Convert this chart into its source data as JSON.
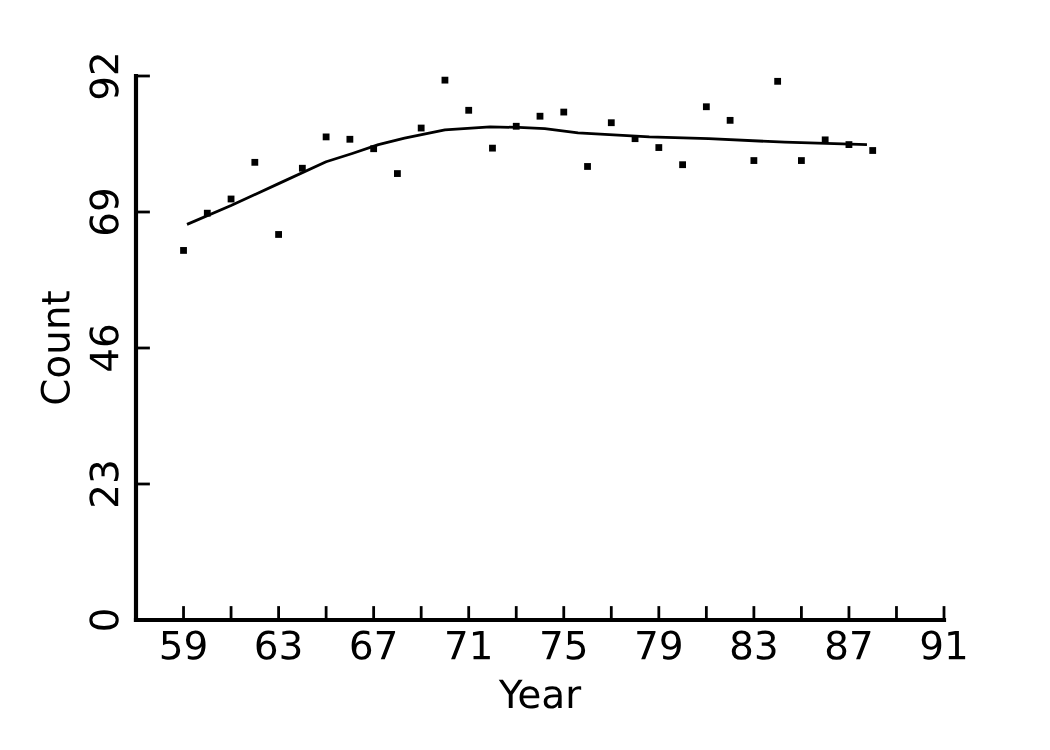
{
  "chart_data": {
    "type": "scatter",
    "xlabel": "Year",
    "ylabel": "Count",
    "xlim": [
      57,
      91
    ],
    "ylim": [
      0,
      92
    ],
    "xticks": [
      59,
      {
        "value": 61,
        "label": null
      },
      63,
      {
        "value": 65,
        "label": null
      },
      67,
      {
        "value": 69,
        "label": null
      },
      71,
      {
        "value": 73,
        "label": null
      },
      75,
      {
        "value": 77,
        "label": null
      },
      79,
      {
        "value": 81,
        "label": null
      },
      83,
      {
        "value": 85,
        "label": null
      },
      87,
      {
        "value": 89,
        "label": null
      },
      91
    ],
    "yticks": [
      0,
      23,
      46,
      69,
      92
    ],
    "grid": false,
    "legend": false,
    "series": [
      {
        "color": "#000000",
        "marker": "square",
        "x": [
          59,
          60,
          61,
          62,
          63,
          64,
          65,
          66,
          67,
          68,
          69,
          70,
          71,
          72,
          73,
          74,
          75,
          76,
          77,
          78,
          79,
          80,
          81,
          82,
          83,
          84,
          85,
          86,
          87,
          88
        ],
        "values": [
          62.5,
          68.8,
          71.2,
          77.4,
          65.2,
          76.4,
          81.7,
          81.3,
          79.7,
          75.5,
          83.2,
          91.3,
          86.2,
          79.8,
          83.5,
          85.2,
          85.9,
          76.7,
          84.1,
          81.4,
          79.9,
          77.0,
          86.8,
          84.5,
          77.7,
          91.1,
          77.7,
          81.2,
          80.4,
          79.4
        ]
      },
      {
        "type": "line",
        "color": "#000000",
        "marker": "none",
        "line_style": "solid",
        "x": [
          59.2,
          61.0,
          63.0,
          65.0,
          66.1,
          67.2,
          68.3,
          70.0,
          71.9,
          73.1,
          74.2,
          75.6,
          78.6,
          81.1,
          84.3,
          87.7
        ],
        "values": [
          67.0,
          70.1,
          73.8,
          77.5,
          78.9,
          80.4,
          81.5,
          82.9,
          83.4,
          83.3,
          83.1,
          82.4,
          81.7,
          81.4,
          80.8,
          80.4
        ]
      }
    ]
  }
}
